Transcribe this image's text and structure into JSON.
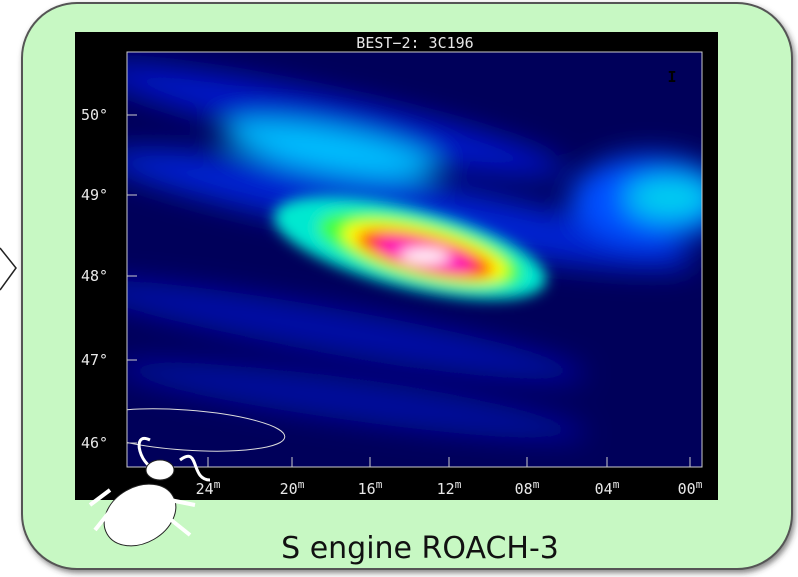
{
  "plot": {
    "title": "BEST−2: 3C196",
    "stokes": "I",
    "y_labels": [
      "50°",
      "49°",
      "48°",
      "47°",
      "46°"
    ],
    "x_labels": [
      {
        "value": "24",
        "unit": "m"
      },
      {
        "value": "20",
        "unit": "m"
      },
      {
        "value": "16",
        "unit": "m"
      },
      {
        "value": "12",
        "unit": "m"
      },
      {
        "value": "08",
        "unit": "m"
      },
      {
        "value": "04",
        "unit": "m"
      },
      {
        "value": "00",
        "unit": "m"
      }
    ]
  },
  "caption": "S engine ROACH-3"
}
